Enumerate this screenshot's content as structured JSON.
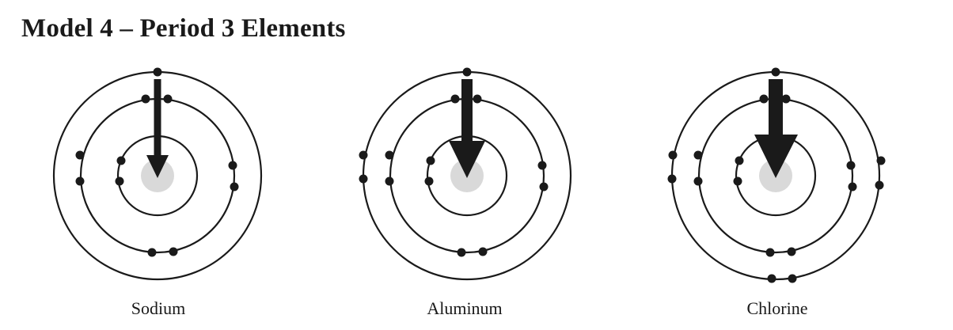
{
  "title": "Model 4 – Period 3 Elements",
  "colors": {
    "ink": "#1a1a1a",
    "nucleus": "#d9d9d9",
    "background": "#ffffff"
  },
  "atoms": [
    {
      "name": "Sodium",
      "shell_electrons": [
        2,
        8,
        1
      ],
      "nucleus_pull": "small"
    },
    {
      "name": "Aluminum",
      "shell_electrons": [
        2,
        8,
        3
      ],
      "nucleus_pull": "medium"
    },
    {
      "name": "Chlorine",
      "shell_electrons": [
        2,
        8,
        7
      ],
      "nucleus_pull": "large"
    }
  ]
}
